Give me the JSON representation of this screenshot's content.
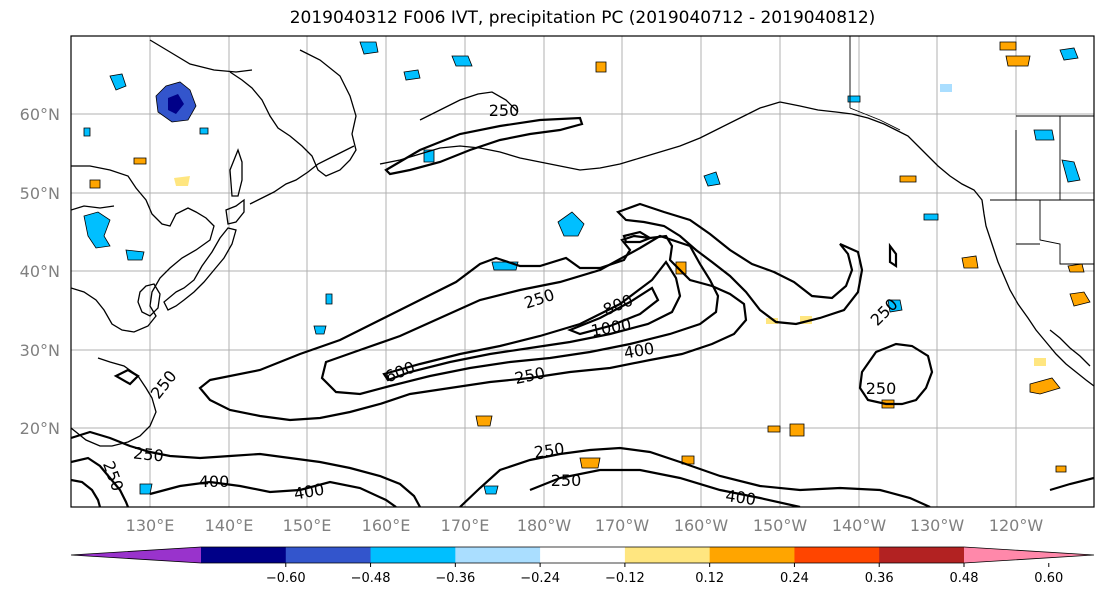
{
  "title": "2019040312 F006 IVT, precipitation PC (2019040712 - 2019040812)",
  "lat_labels": [
    "60°N",
    "50°N",
    "40°N",
    "30°N",
    "20°N"
  ],
  "lon_labels": [
    "130°E",
    "140°E",
    "150°E",
    "160°E",
    "170°E",
    "180°W",
    "170°W",
    "160°W",
    "150°W",
    "140°W",
    "130°W",
    "120°W"
  ],
  "colorbar": {
    "colors": [
      "#9933cc",
      "#000088",
      "#3355cc",
      "#00bfff",
      "#aadeff",
      "#ffffff",
      "#ffe680",
      "#ffa500",
      "#ff4500",
      "#b22222",
      "#ff88aa"
    ],
    "ticks": [
      "−0.60",
      "−0.48",
      "−0.36",
      "−0.24",
      "−0.12",
      "0.12",
      "0.24",
      "0.36",
      "0.48",
      "0.60"
    ]
  },
  "contour_labels": [
    {
      "text": "250"
    },
    {
      "text": "250"
    },
    {
      "text": "800"
    },
    {
      "text": "1000"
    },
    {
      "text": "400"
    },
    {
      "text": "600"
    },
    {
      "text": "250"
    },
    {
      "text": "250"
    },
    {
      "text": "250"
    },
    {
      "text": "250"
    },
    {
      "text": "250"
    },
    {
      "text": "250"
    },
    {
      "text": "400"
    },
    {
      "text": "400"
    },
    {
      "text": "250"
    },
    {
      "text": "250"
    },
    {
      "text": "400"
    }
  ]
}
